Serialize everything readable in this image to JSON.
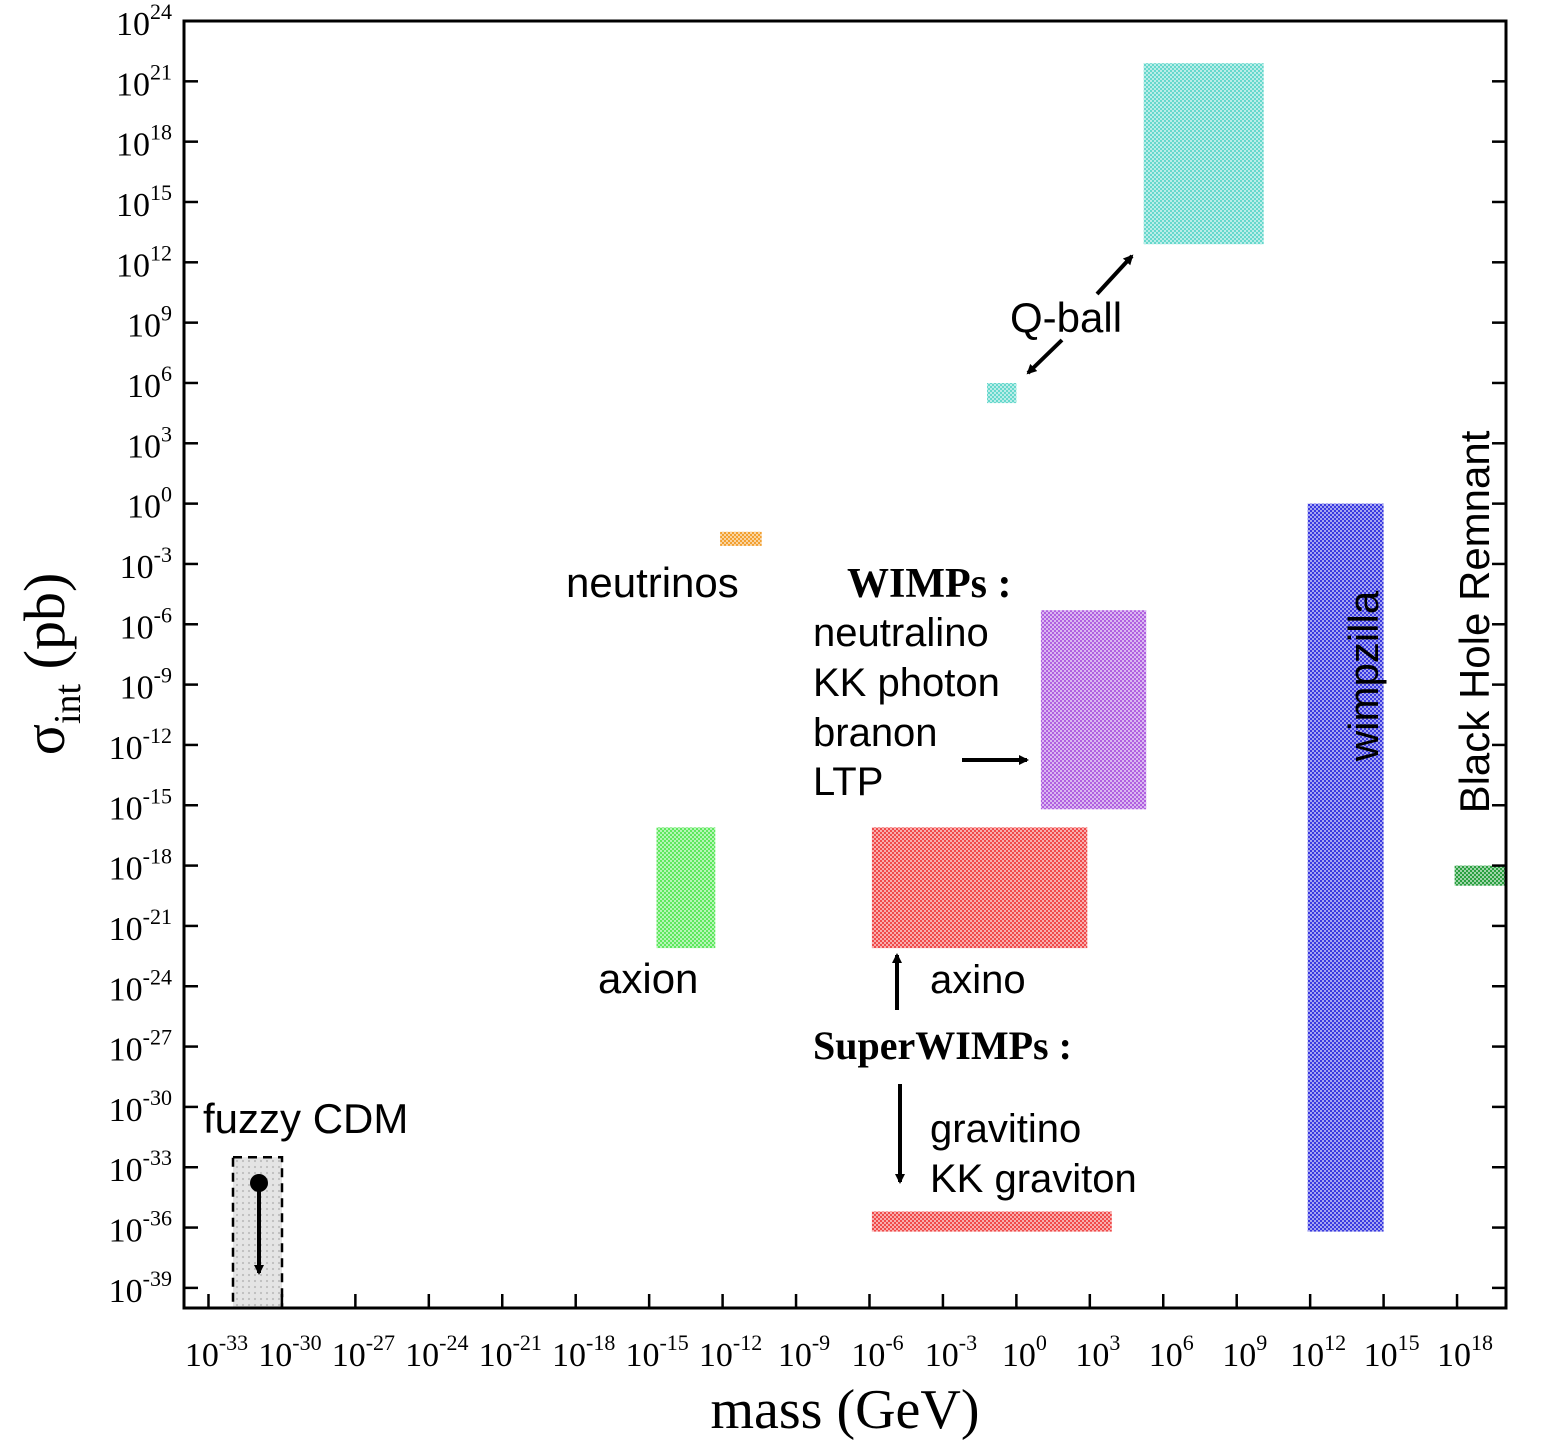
{
  "chart_data": {
    "type": "region-plot",
    "title": "",
    "xlabel": "mass (GeV)",
    "ylabel_main": "σ",
    "ylabel_sub": "int",
    "ylabel_unit": " (pb)",
    "x_scale": "log10",
    "y_scale": "log10",
    "xlim_exp": [
      -34,
      20
    ],
    "ylim_exp": [
      -40,
      24
    ],
    "x_ticks": [
      {
        "base": "10",
        "exp": "-33",
        "value": -33
      },
      {
        "base": "10",
        "exp": "-30",
        "value": -30
      },
      {
        "base": "10",
        "exp": "-27",
        "value": -27
      },
      {
        "base": "10",
        "exp": "-24",
        "value": -24
      },
      {
        "base": "10",
        "exp": "-21",
        "value": -21
      },
      {
        "base": "10",
        "exp": "-18",
        "value": -18
      },
      {
        "base": "10",
        "exp": "-15",
        "value": -15
      },
      {
        "base": "10",
        "exp": "-12",
        "value": -12
      },
      {
        "base": "10",
        "exp": "-9",
        "value": -9
      },
      {
        "base": "10",
        "exp": "-6",
        "value": -6
      },
      {
        "base": "10",
        "exp": "-3",
        "value": -3
      },
      {
        "base": "10",
        "exp": "0",
        "value": 0
      },
      {
        "base": "10",
        "exp": "3",
        "value": 3
      },
      {
        "base": "10",
        "exp": "6",
        "value": 6
      },
      {
        "base": "10",
        "exp": "9",
        "value": 9
      },
      {
        "base": "10",
        "exp": "12",
        "value": 12
      },
      {
        "base": "10",
        "exp": "15",
        "value": 15
      },
      {
        "base": "10",
        "exp": "18",
        "value": 18
      }
    ],
    "y_ticks": [
      {
        "base": "10",
        "exp": "24",
        "value": 24
      },
      {
        "base": "10",
        "exp": "21",
        "value": 21
      },
      {
        "base": "10",
        "exp": "18",
        "value": 18
      },
      {
        "base": "10",
        "exp": "15",
        "value": 15
      },
      {
        "base": "10",
        "exp": "12",
        "value": 12
      },
      {
        "base": "10",
        "exp": "9",
        "value": 9
      },
      {
        "base": "10",
        "exp": "6",
        "value": 6
      },
      {
        "base": "10",
        "exp": "3",
        "value": 3
      },
      {
        "base": "10",
        "exp": "0",
        "value": 0
      },
      {
        "base": "10",
        "exp": "-3",
        "value": -3
      },
      {
        "base": "10",
        "exp": "-6",
        "value": -6
      },
      {
        "base": "10",
        "exp": "-9",
        "value": -9
      },
      {
        "base": "10",
        "exp": "-12",
        "value": -12
      },
      {
        "base": "10",
        "exp": "-15",
        "value": -15
      },
      {
        "base": "10",
        "exp": "-18",
        "value": -18
      },
      {
        "base": "10",
        "exp": "-21",
        "value": -21
      },
      {
        "base": "10",
        "exp": "-24",
        "value": -24
      },
      {
        "base": "10",
        "exp": "-27",
        "value": -27
      },
      {
        "base": "10",
        "exp": "-30",
        "value": -30
      },
      {
        "base": "10",
        "exp": "-33",
        "value": -33
      },
      {
        "base": "10",
        "exp": "-36",
        "value": -36
      },
      {
        "base": "10",
        "exp": "-39",
        "value": -39
      }
    ],
    "regions": [
      {
        "name": "q-ball-large",
        "x": [
          5.2,
          10.1
        ],
        "y": [
          12.9,
          21.9
        ],
        "color": "#66d8cc"
      },
      {
        "name": "q-ball-small",
        "x": [
          -1.2,
          0.0
        ],
        "y": [
          5.0,
          6.0
        ],
        "color": "#66d8cc"
      },
      {
        "name": "neutrinos",
        "x": [
          -12.1,
          -10.4
        ],
        "y": [
          -2.1,
          -1.4
        ],
        "color": "#f2a030"
      },
      {
        "name": "wimps",
        "x": [
          1.0,
          5.3
        ],
        "y": [
          -15.2,
          -5.3
        ],
        "color": "#b060e0"
      },
      {
        "name": "axion",
        "x": [
          -14.7,
          -12.3
        ],
        "y": [
          -22.1,
          -16.1
        ],
        "color": "#5de85d"
      },
      {
        "name": "axino",
        "x": [
          -5.9,
          2.9
        ],
        "y": [
          -22.1,
          -16.1
        ],
        "color": "#f04a4a"
      },
      {
        "name": "gravitino",
        "x": [
          -5.9,
          3.9
        ],
        "y": [
          -36.2,
          -35.2
        ],
        "color": "#f04a4a"
      },
      {
        "name": "wimpzilla",
        "x": [
          11.9,
          15.0
        ],
        "y": [
          -36.2,
          0.0
        ],
        "color": "#3a3ae0"
      },
      {
        "name": "black-hole-remnant",
        "x": [
          17.9,
          20.0
        ],
        "y": [
          -19.0,
          -18.0
        ],
        "color": "#2aa040"
      },
      {
        "name": "fuzzy-cdm",
        "x": [
          -32.0,
          -30.0
        ],
        "y": [
          -40.0,
          -32.5
        ],
        "color": "#d4d4d4",
        "dashed": true
      }
    ],
    "labels": {
      "q_ball": "Q-ball",
      "neutrinos": "neutrinos",
      "wimps_heading": "WIMPs :",
      "neutralino": "neutralino",
      "kk_photon": "KK photon",
      "branon": "branon",
      "ltp": "LTP",
      "axion": "axion",
      "axino": "axino",
      "superwimps_heading": "SuperWIMPs :",
      "gravitino": "gravitino",
      "kk_graviton": "KK graviton",
      "fuzzy_cdm": "fuzzy CDM",
      "wimpzilla": "wimpzilla",
      "black_hole_remnant": "Black Hole Remnant"
    }
  }
}
